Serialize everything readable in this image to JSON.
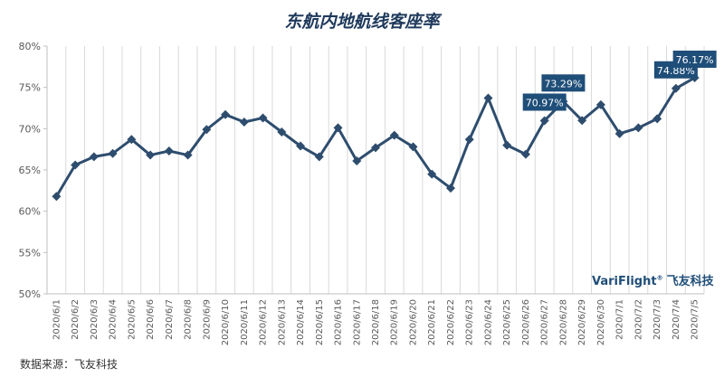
{
  "chart_data": {
    "type": "line",
    "title": "东航内地航线客座率",
    "xlabel": "",
    "ylabel": "",
    "ylim": [
      50,
      80
    ],
    "yticks": [
      "50%",
      "55%",
      "60%",
      "65%",
      "70%",
      "75%",
      "80%"
    ],
    "grid": "vertical",
    "categories": [
      "2020/6/1",
      "2020/6/2",
      "2020/6/3",
      "2020/6/4",
      "2020/6/5",
      "2020/6/6",
      "2020/6/7",
      "2020/6/8",
      "2020/6/9",
      "2020/6/10",
      "2020/6/11",
      "2020/6/12",
      "2020/6/13",
      "2020/6/14",
      "2020/6/15",
      "2020/6/16",
      "2020/6/17",
      "2020/6/18",
      "2020/6/19",
      "2020/6/20",
      "2020/6/21",
      "2020/6/22",
      "2020/6/23",
      "2020/6/24",
      "2020/6/25",
      "2020/6/26",
      "2020/6/27",
      "2020/6/28",
      "2020/6/29",
      "2020/6/30",
      "2020/7/1",
      "2020/7/2",
      "2020/7/3",
      "2020/7/4",
      "2020/7/5"
    ],
    "series": [
      {
        "color": "#2e4d6e",
        "values": [
          61.8,
          65.6,
          66.6,
          67.0,
          68.7,
          66.8,
          67.3,
          66.8,
          69.9,
          71.7,
          70.8,
          71.3,
          69.6,
          67.9,
          66.6,
          70.1,
          66.1,
          67.7,
          69.2,
          67.8,
          64.5,
          62.8,
          68.7,
          73.7,
          68.0,
          66.9,
          70.97,
          73.29,
          71.0,
          72.9,
          69.4,
          70.1,
          71.2,
          74.88,
          76.17
        ]
      }
    ],
    "data_labels": [
      {
        "index": 26,
        "text": "70.97%"
      },
      {
        "index": 27,
        "text": "73.29%"
      },
      {
        "index": 33,
        "text": "74.88%"
      },
      {
        "index": 34,
        "text": "76.17%"
      }
    ],
    "colors": {
      "line": "#2e4d6e",
      "label_bg": "#1f4e79",
      "grid": "#d9d9d9"
    }
  },
  "source": "数据来源：飞友科技",
  "logo": {
    "brand": "VariFlight",
    "reg": "®",
    "cn": "飞友科技"
  }
}
